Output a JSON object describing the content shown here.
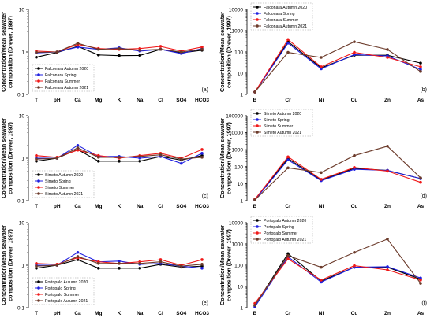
{
  "figure": {
    "ylabel_lines": [
      "Concentration/Mean seawater",
      "composition (Drever, 1997)"
    ]
  },
  "series_styles": [
    {
      "season": "Autumn 2020",
      "color": "#000000"
    },
    {
      "season": "Spring",
      "color": "#1f1fe0"
    },
    {
      "season": "Summer",
      "color": "#f01818"
    },
    {
      "season": "Autumn 2021",
      "color": "#6b3a2a"
    }
  ],
  "chart_data": [
    {
      "type": "line",
      "panel": "(a)",
      "site": "Falconara",
      "scale": "log",
      "ylim": [
        0.1,
        10
      ],
      "yticks": [
        "0.1",
        "1",
        "10"
      ],
      "legend_position": "bottom-left",
      "categories": [
        "T",
        "pH",
        "Ca",
        "Mg",
        "K",
        "Na",
        "Cl",
        "SO4",
        "HCO3"
      ],
      "series": [
        {
          "name": "Falconara Autumn 2020",
          "values": [
            0.75,
            0.97,
            1.35,
            0.85,
            0.82,
            0.83,
            1.15,
            0.95,
            1.1
          ]
        },
        {
          "name": "Falconara Spring",
          "values": [
            0.95,
            1.0,
            1.3,
            1.15,
            1.25,
            1.05,
            1.15,
            0.92,
            1.2
          ]
        },
        {
          "name": "Falconara Summer",
          "values": [
            1.05,
            1.0,
            1.5,
            1.2,
            1.15,
            1.2,
            1.35,
            1.05,
            1.3
          ]
        },
        {
          "name": "Falconara Autumn 2021",
          "values": [
            0.98,
            1.0,
            1.6,
            1.15,
            1.2,
            1.1,
            1.15,
            1.0,
            1.15
          ]
        }
      ]
    },
    {
      "type": "line",
      "panel": "(b)",
      "site": "Falconara",
      "scale": "log",
      "ylim": [
        1,
        10000
      ],
      "yticks": [
        "1",
        "10",
        "100",
        "1000",
        "10000"
      ],
      "legend_position": "top-left",
      "categories": [
        "B",
        "Cr",
        "Ni",
        "Cu",
        "Zn",
        "As"
      ],
      "series": [
        {
          "name": "Falconara Autumn 2020",
          "values": [
            1.3,
            300,
            18,
            70,
            70,
            30
          ]
        },
        {
          "name": "Falconara Spring",
          "values": [
            1.3,
            260,
            16,
            75,
            65,
            15
          ]
        },
        {
          "name": "Falconara Summer",
          "values": [
            1.3,
            380,
            20,
            95,
            55,
            20
          ]
        },
        {
          "name": "Falconara Autumn 2021",
          "values": [
            1.3,
            95,
            55,
            300,
            130,
            12
          ]
        }
      ]
    },
    {
      "type": "line",
      "panel": "(c)",
      "site": "Simeto",
      "scale": "log",
      "ylim": [
        0.1,
        10
      ],
      "yticks": [
        "0.1",
        "1",
        "10"
      ],
      "legend_position": "bottom-left",
      "categories": [
        "T",
        "pH",
        "Ca",
        "Mg",
        "K",
        "Na",
        "Cl",
        "SO4",
        "HCO3"
      ],
      "series": [
        {
          "name": "Simeto Autumn 2020",
          "values": [
            0.85,
            1.0,
            1.6,
            0.85,
            0.85,
            0.85,
            1.1,
            0.9,
            1.15
          ]
        },
        {
          "name": "Simeto Spring",
          "values": [
            1.0,
            1.0,
            2.0,
            1.1,
            1.1,
            1.0,
            1.1,
            0.75,
            1.3
          ]
        },
        {
          "name": "Simeto Summer",
          "values": [
            1.15,
            1.05,
            1.55,
            1.15,
            1.0,
            1.15,
            1.3,
            1.0,
            1.6
          ]
        },
        {
          "name": "Simeto Autumn 2021",
          "values": [
            0.95,
            1.0,
            1.75,
            1.05,
            1.05,
            1.1,
            1.2,
            0.95,
            1.05
          ]
        }
      ]
    },
    {
      "type": "line",
      "panel": "(d)",
      "site": "Simeto",
      "scale": "log",
      "ylim": [
        1,
        100000
      ],
      "yticks": [
        "1",
        "10",
        "100",
        "1000",
        "10000",
        "100000"
      ],
      "legend_position": "top-left",
      "categories": [
        "B",
        "Cr",
        "Ni",
        "Cu",
        "Zn",
        "As"
      ],
      "series": [
        {
          "name": "Simeto Autumn 2020",
          "values": [
            1.2,
            300,
            16,
            80,
            60,
            20
          ]
        },
        {
          "name": "Simeto Spring",
          "values": [
            1.1,
            250,
            15,
            70,
            60,
            20
          ]
        },
        {
          "name": "Simeto Summer",
          "values": [
            1.2,
            380,
            18,
            90,
            55,
            12
          ]
        },
        {
          "name": "Simeto Autumn 2021",
          "values": [
            1.1,
            85,
            45,
            450,
            1600,
            22
          ]
        }
      ]
    },
    {
      "type": "line",
      "panel": "(e)",
      "site": "Portopalo",
      "scale": "log",
      "ylim": [
        0.1,
        10
      ],
      "yticks": [
        "0.1",
        "1",
        "10"
      ],
      "legend_position": "bottom-left",
      "categories": [
        "T",
        "pH",
        "Ca",
        "Mg",
        "K",
        "Na",
        "Cl",
        "SO4",
        "HCO3"
      ],
      "series": [
        {
          "name": "Portopalo Autumn 2020",
          "values": [
            0.85,
            1.0,
            1.35,
            0.85,
            0.85,
            0.85,
            1.05,
            0.9,
            0.95
          ]
        },
        {
          "name": "Portopalo Spring",
          "values": [
            1.0,
            1.0,
            2.0,
            1.2,
            1.25,
            1.05,
            1.1,
            0.95,
            0.85
          ]
        },
        {
          "name": "Portopalo Summer",
          "values": [
            1.1,
            1.05,
            1.5,
            1.2,
            1.1,
            1.2,
            1.35,
            1.0,
            1.35
          ]
        },
        {
          "name": "Portopalo Autumn 2021",
          "values": [
            0.95,
            1.0,
            1.6,
            1.1,
            1.1,
            1.1,
            1.2,
            0.95,
            1.05
          ]
        }
      ]
    },
    {
      "type": "line",
      "panel": "(f)",
      "site": "Portopalo",
      "scale": "log",
      "ylim": [
        1,
        10000
      ],
      "yticks": [
        "1",
        "10",
        "100",
        "1000",
        "10000"
      ],
      "legend_position": "top-left",
      "categories": [
        "B",
        "Cr",
        "Ni",
        "Cu",
        "Zn",
        "As"
      ],
      "series": [
        {
          "name": "Portopalo Autumn 2020",
          "values": [
            1.3,
            350,
            18,
            80,
            80,
            22
          ]
        },
        {
          "name": "Portopalo Spring",
          "values": [
            1.1,
            250,
            16,
            80,
            85,
            25
          ]
        },
        {
          "name": "Portopalo Summer",
          "values": [
            1.6,
            200,
            20,
            95,
            60,
            20
          ]
        },
        {
          "name": "Portopalo Autumn 2021",
          "values": [
            1.3,
            280,
            80,
            400,
            1700,
            14
          ]
        }
      ]
    }
  ]
}
